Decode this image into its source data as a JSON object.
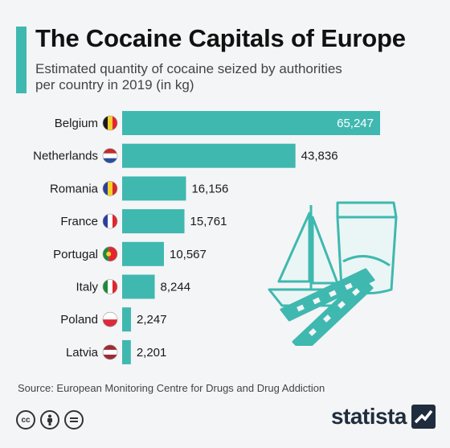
{
  "header": {
    "title": "The Cocaine Capitals of Europe",
    "subtitle": "Estimated quantity of cocaine seized by authorities per country in 2019 (in kg)"
  },
  "colors": {
    "accent": "#3fb8b0",
    "bar": "#3fb8b0",
    "value_inside": "#ffffff",
    "value_outside": "#1a1a1a"
  },
  "chart_data": {
    "type": "bar",
    "orientation": "horizontal",
    "title": "The Cocaine Capitals of Europe",
    "subtitle": "Estimated quantity of cocaine seized by authorities per country in 2019 (in kg)",
    "categories": [
      "Belgium",
      "Netherlands",
      "Romania",
      "France",
      "Portugal",
      "Italy",
      "Poland",
      "Latvia"
    ],
    "values": [
      65247,
      43836,
      16156,
      15761,
      10567,
      8244,
      2247,
      2201
    ],
    "value_labels": [
      "65,247",
      "43,836",
      "16,156",
      "15,761",
      "10,567",
      "8,244",
      "2,247",
      "2,201"
    ],
    "flags": [
      "belgium-flag-icon",
      "netherlands-flag-icon",
      "romania-flag-icon",
      "france-flag-icon",
      "portugal-flag-icon",
      "italy-flag-icon",
      "poland-flag-icon",
      "latvia-flag-icon"
    ],
    "xlim": [
      0,
      65247
    ],
    "grid": false,
    "legend": "none"
  },
  "footer": {
    "source": "Source: European Monitoring Centre for Drugs and Drug Addiction",
    "license_icons": [
      "cc-icon",
      "attribution-icon",
      "no-derivatives-icon"
    ],
    "brand": "statista"
  }
}
